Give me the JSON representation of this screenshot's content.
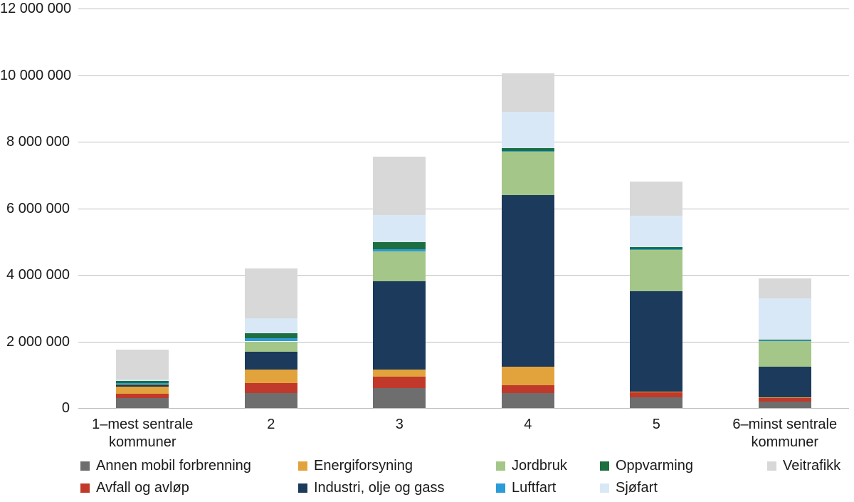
{
  "chart_data": {
    "type": "bar",
    "stacked": true,
    "title": "",
    "xlabel": "",
    "ylabel": "",
    "ylim": [
      0,
      12000000
    ],
    "grid": true,
    "legend_position": "bottom",
    "categories": [
      "1–mest sentrale kommuner",
      "2",
      "3",
      "4",
      "5",
      "6–minst sentrale kommuner"
    ],
    "yticks": [
      {
        "value": 0,
        "label": "0"
      },
      {
        "value": 2000000,
        "label": "2 000 000"
      },
      {
        "value": 4000000,
        "label": "4 000 000"
      },
      {
        "value": 6000000,
        "label": "6 000 000"
      },
      {
        "value": 8000000,
        "label": "8 000 000"
      },
      {
        "value": 10000000,
        "label": "10 000 000"
      },
      {
        "value": 12000000,
        "label": "12 000 000"
      }
    ],
    "series": [
      {
        "name": "Annen mobil forbrenning",
        "color": "#6e6e6e",
        "values": [
          300000,
          450000,
          600000,
          450000,
          320000,
          200000
        ]
      },
      {
        "name": "Avfall og avløp",
        "color": "#c0392b",
        "values": [
          120000,
          300000,
          350000,
          230000,
          150000,
          90000
        ]
      },
      {
        "name": "Energiforsyning",
        "color": "#e2a33c",
        "values": [
          230000,
          400000,
          200000,
          550000,
          30000,
          30000
        ]
      },
      {
        "name": "Industri, olje og gass",
        "color": "#1b3a5c",
        "values": [
          50000,
          550000,
          2650000,
          5170000,
          3000000,
          930000
        ]
      },
      {
        "name": "Jordbruk",
        "color": "#a4c688",
        "values": [
          30000,
          300000,
          900000,
          1300000,
          1250000,
          760000
        ]
      },
      {
        "name": "Luftfart",
        "color": "#2b9cd8",
        "values": [
          20000,
          100000,
          80000,
          30000,
          20000,
          20000
        ]
      },
      {
        "name": "Oppvarming",
        "color": "#1d6f42",
        "values": [
          70000,
          150000,
          200000,
          80000,
          60000,
          30000
        ]
      },
      {
        "name": "Sjøfart",
        "color": "#d9e8f7",
        "values": [
          40000,
          450000,
          820000,
          1090000,
          950000,
          1240000
        ]
      },
      {
        "name": "Veitrafikk",
        "color": "#d8d8d8",
        "values": [
          900000,
          1500000,
          1750000,
          1150000,
          1020000,
          600000
        ]
      }
    ],
    "legend_rows": [
      [
        "Annen mobil forbrenning",
        "Energiforsyning",
        "Jordbruk",
        "Oppvarming",
        "Veitrafikk"
      ],
      [
        "Avfall og avløp",
        "Industri, olje og gass",
        "Luftfart",
        "Sjøfart"
      ]
    ]
  }
}
